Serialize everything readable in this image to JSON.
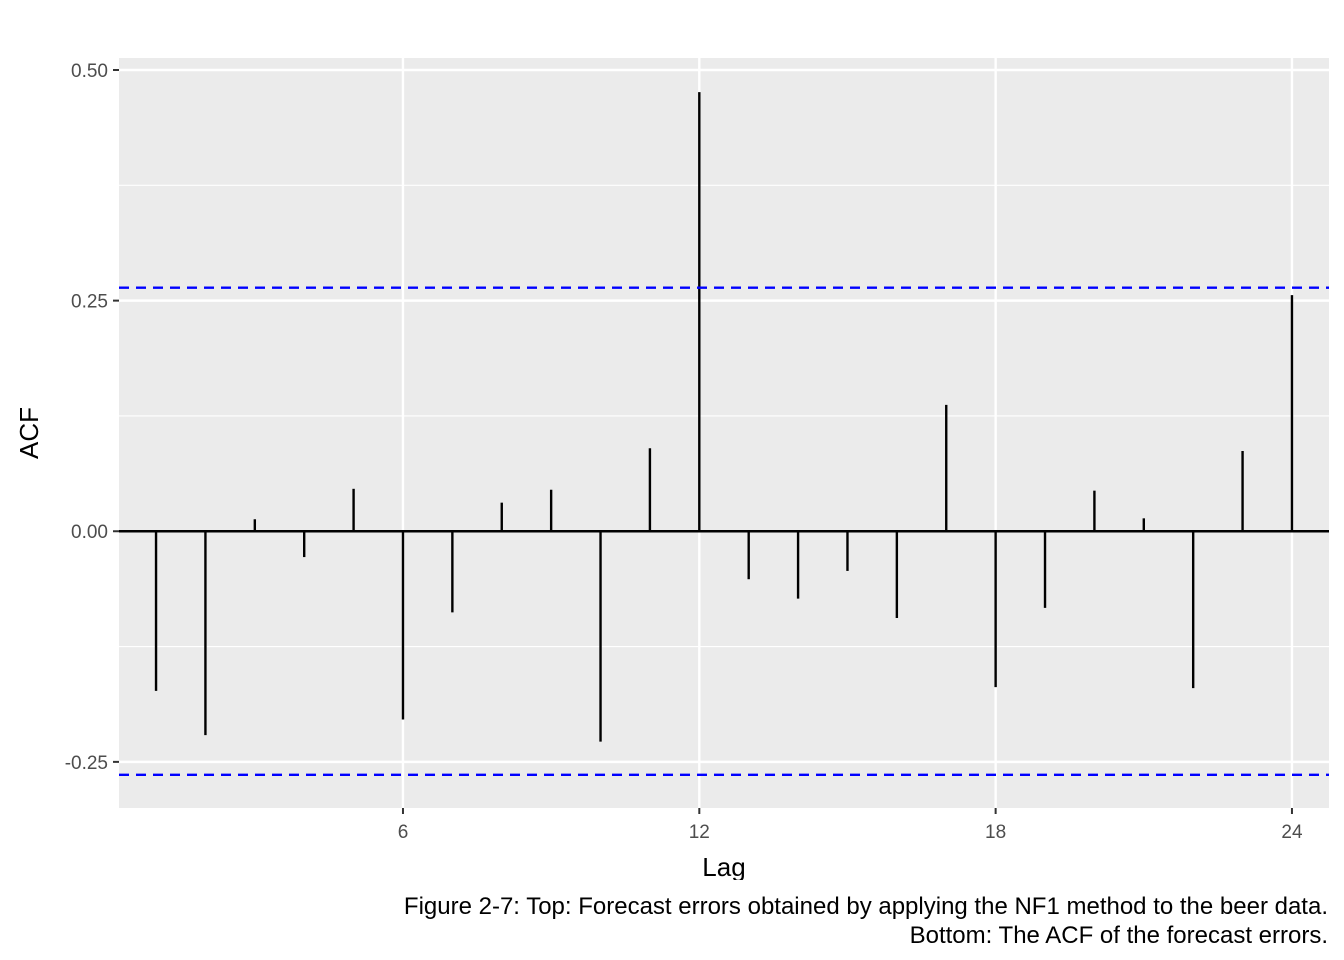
{
  "chart_data": {
    "type": "bar",
    "subtype": "acf",
    "xlabel": "Lag",
    "ylabel": "ACF",
    "xlim": [
      0.25,
      24.75
    ],
    "ylim": [
      -0.3,
      0.513
    ],
    "x_ticks": [
      6,
      12,
      18,
      24
    ],
    "y_ticks": [
      0.5,
      0.25,
      0.0,
      -0.25
    ],
    "y_tick_labels": [
      "0.50",
      "0.25",
      "0.00",
      "-0.25"
    ],
    "lags": [
      1,
      2,
      3,
      4,
      5,
      6,
      7,
      8,
      9,
      10,
      11,
      12,
      13,
      14,
      15,
      16,
      17,
      18,
      19,
      20,
      21,
      22,
      23,
      24
    ],
    "values": [
      -0.173,
      -0.221,
      0.013,
      -0.028,
      0.046,
      -0.204,
      -0.088,
      0.031,
      0.045,
      -0.228,
      0.09,
      0.476,
      -0.052,
      -0.073,
      -0.043,
      -0.094,
      0.137,
      -0.169,
      -0.083,
      0.044,
      0.014,
      -0.17,
      0.087,
      0.256
    ],
    "confidence_bounds": [
      0.264,
      -0.264
    ],
    "colors": {
      "panel": "#ebebeb",
      "grid": "#ffffff",
      "bars": "#000000",
      "bounds": "#0000ff"
    },
    "grid": true,
    "legend": "none"
  },
  "caption": {
    "line1": "Figure 2-7: Top: Forecast errors obtained by applying the NF1 method to the beer data.",
    "line2": "Bottom: The ACF of the forecast errors."
  }
}
